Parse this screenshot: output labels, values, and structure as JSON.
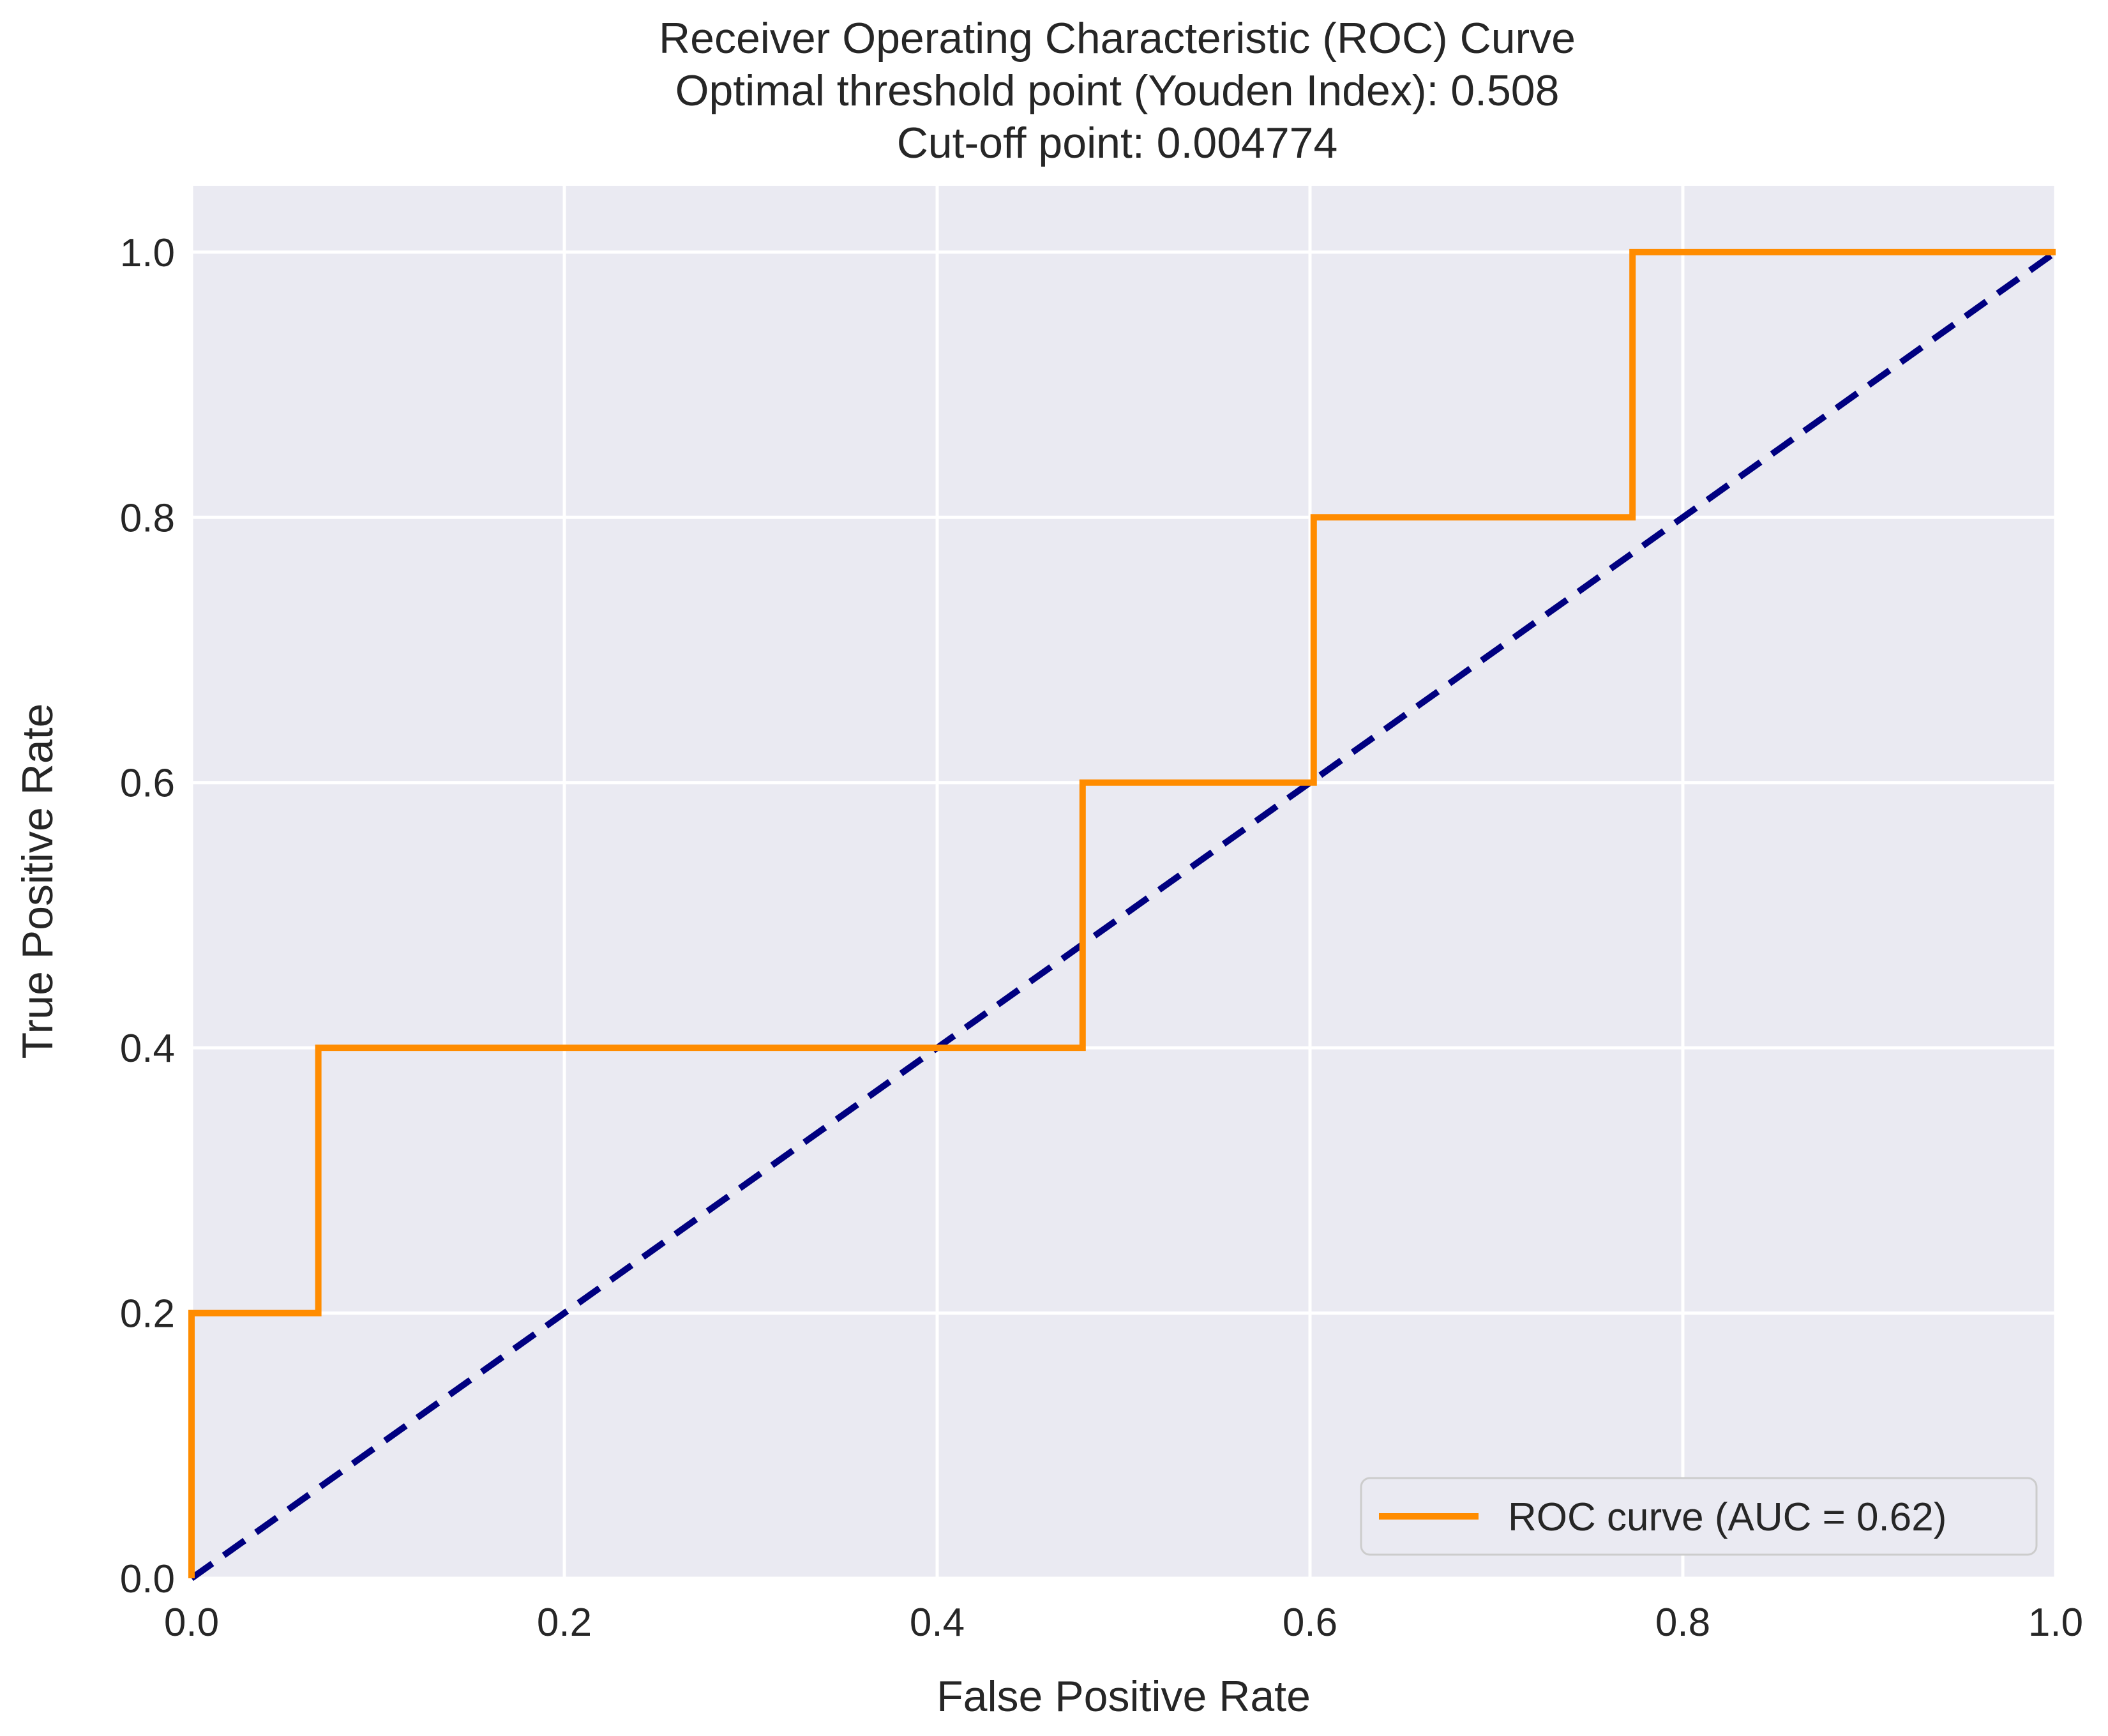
{
  "chart_data": {
    "type": "line",
    "title_lines": [
      "Receiver Operating Characteristic (ROC) Curve",
      "Optimal threshold point (Youden Index): 0.508",
      "Cut-off point: 0.004774"
    ],
    "xlabel": "False Positive Rate",
    "ylabel": "True Positive Rate",
    "xlim": [
      0.0,
      1.0
    ],
    "ylim": [
      0.0,
      1.05
    ],
    "xticks": [
      0.0,
      0.2,
      0.4,
      0.6,
      0.8,
      1.0
    ],
    "yticks": [
      0.0,
      0.2,
      0.4,
      0.6,
      0.8,
      1.0
    ],
    "xtick_labels": [
      "0.0",
      "0.2",
      "0.4",
      "0.6",
      "0.8",
      "1.0"
    ],
    "ytick_labels": [
      "0.0",
      "0.2",
      "0.4",
      "0.6",
      "0.8",
      "1.0"
    ],
    "grid": true,
    "legend_position": "lower-right",
    "background_color": "#eaeaf2",
    "grid_color": "#ffffff",
    "series": [
      {
        "name": "ROC curve (AUC = 0.62)",
        "color": "#ff8c00",
        "style": "solid",
        "x": [
          0.0,
          0.0,
          0.068,
          0.068,
          0.478,
          0.478,
          0.602,
          0.602,
          0.773,
          0.773,
          1.0
        ],
        "y": [
          0.0,
          0.2,
          0.2,
          0.4,
          0.4,
          0.6,
          0.6,
          0.8,
          0.8,
          1.0,
          1.0
        ]
      },
      {
        "color": "#000080",
        "style": "dashed",
        "x": [
          0.0,
          1.0
        ],
        "y": [
          0.0,
          1.0
        ]
      }
    ]
  }
}
